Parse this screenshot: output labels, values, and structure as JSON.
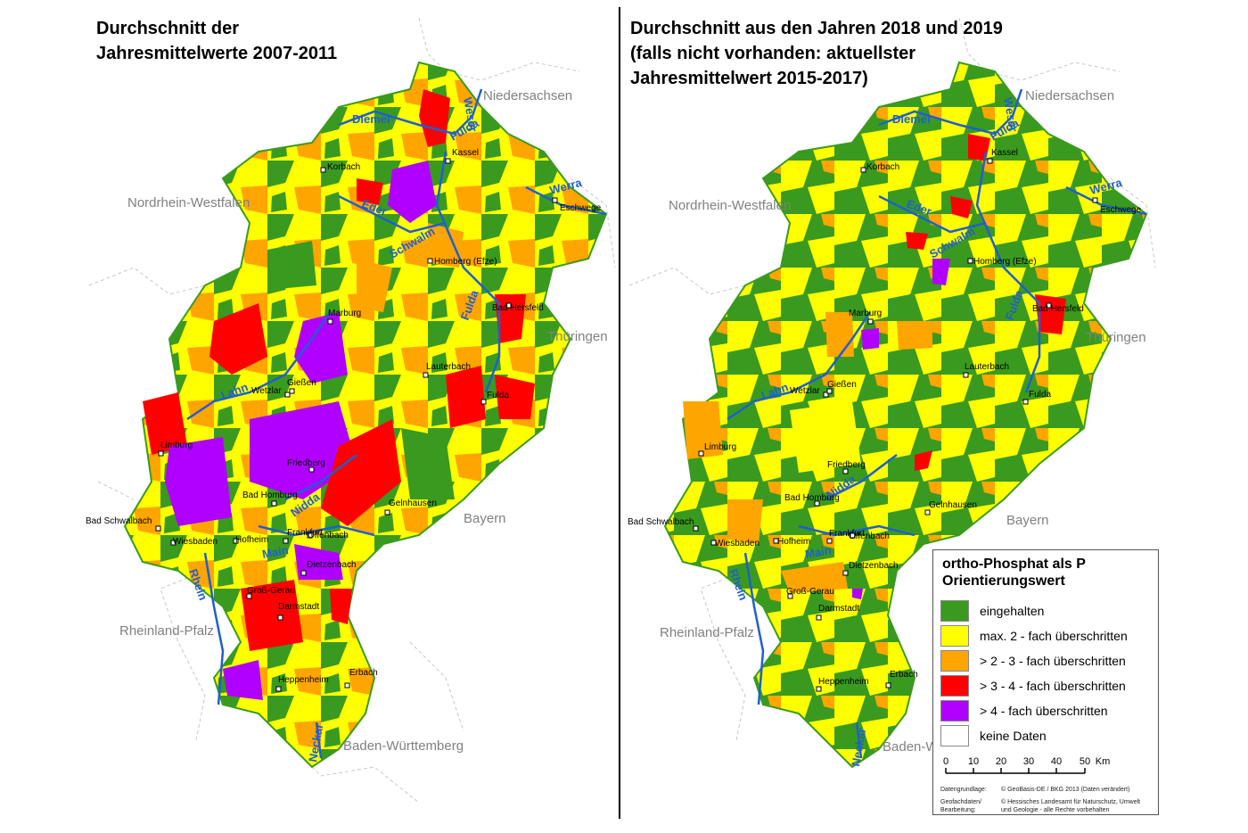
{
  "left": {
    "title": "Durchschnitt der\nJahresmittelwerte 2007-2011"
  },
  "right": {
    "title": "Durchschnitt aus den Jahren 2018 und 2019\n(falls nicht vorhanden: aktuellster\nJahresmittelwert 2015-2017)"
  },
  "states": {
    "niedersachsen": "Niedersachsen",
    "nrw": "Nordrhein-Westfalen",
    "thueringen": "Thüringen",
    "bayern": "Bayern",
    "rlp": "Rheinland-Pfalz",
    "bw": "Baden-Württemberg",
    "bw_short": "Baden-W"
  },
  "rivers": {
    "diemel": "Diemel",
    "weser": "Weser",
    "fulda": "Fulda",
    "werra": "Werra",
    "eder": "Eder",
    "schwalm": "Schwalm",
    "lahn": "Lahn",
    "nidda": "Nidda",
    "main": "Main",
    "rhein": "Rhein",
    "neckar": "Neckar"
  },
  "cities": {
    "kassel": "Kassel",
    "korbach": "Korbach",
    "eschwege": "Eschwege",
    "homberg": "Homberg (Efze)",
    "bad_hersfeld": "Bad Hersfeld",
    "marburg": "Marburg",
    "lauterbach": "Lauterbach",
    "wetzlar": "Wetzlar",
    "giessen": "Gießen",
    "fulda": "Fulda",
    "limburg": "Limburg",
    "friedberg": "Friedberg",
    "bad_homburg": "Bad Homburg",
    "gelnhausen": "Gelnhausen",
    "bad_schwalbach": "Bad Schwalbach",
    "wiesbaden": "Wiesbaden",
    "hofheim": "Hofheim",
    "frankfurt": "Frankfurt",
    "offenbach": "Offenbach",
    "dietzenbach": "Dietzenbach",
    "gross_gerau": "Groß-Gerau",
    "darmstadt": "Darmstadt",
    "erbach": "Erbach",
    "heppenheim": "Heppenheim"
  },
  "legend": {
    "title": "ortho-Phosphat als P\nOrientierungswert",
    "items": [
      {
        "label": "eingehalten",
        "color": "#3a9a1f"
      },
      {
        "label": "max. 2 - fach überschritten",
        "color": "#ffff00"
      },
      {
        "label": "> 2 - 3 - fach überschritten",
        "color": "#ffa500"
      },
      {
        "label": "> 3 - 4 - fach überschritten",
        "color": "#ff0000"
      },
      {
        "label": "> 4 - fach überschritten",
        "color": "#b000ff"
      },
      {
        "label": "keine Daten",
        "color": "#ffffff"
      }
    ],
    "scale_ticks": [
      "0",
      "10",
      "20",
      "30",
      "40",
      "50"
    ],
    "scale_unit": "Km"
  },
  "footer": {
    "datengrundlage_label": "Datengrundlage:",
    "datengrundlage_value": "© GeoBasis-DE / BKG 2013 (Daten verändert)",
    "geofach_label": "Geofachdaten/\nBearbeitung:",
    "geofach_value": "© Hessisches Landesamt für Naturschutz, Umwelt\nund Geologie - alle Rechte vorbehalten"
  },
  "colors": {
    "river": "#1f5fd0",
    "border": "#c8c8c8",
    "state_label": "#808080"
  }
}
